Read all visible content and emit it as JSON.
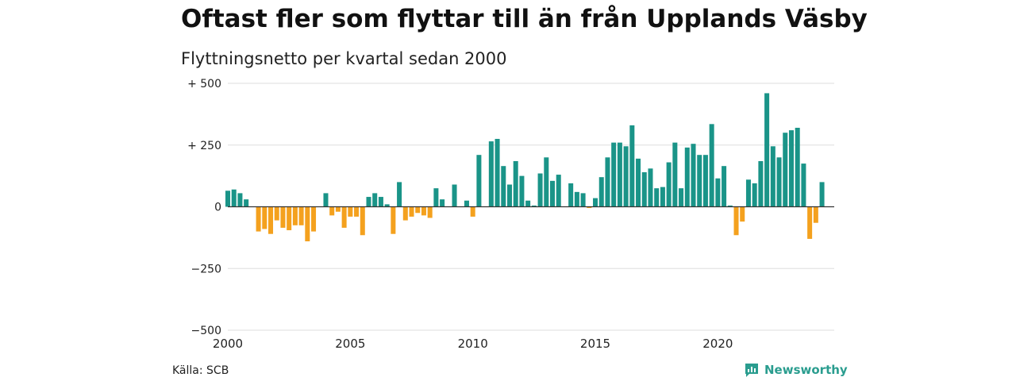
{
  "header": {
    "title": "Oftast fler som flyttar till än från Upplands Väsby",
    "subtitle": "Flyttningsnetto per kvartal sedan 2000"
  },
  "footer": {
    "source": "Källa: SCB",
    "brand": "Newsworthy",
    "brand_icon": "newsworthy-logo-icon"
  },
  "colors": {
    "positive": "#1a9488",
    "negative": "#f4a11e",
    "grid": "#dddddd",
    "zero_line": "#333333",
    "brand": "#2a9d8f"
  },
  "chart_data": {
    "type": "bar",
    "title": "Oftast fler som flyttar till än från Upplands Väsby",
    "subtitle": "Flyttningsnetto per kvartal sedan 2000",
    "xlabel": "",
    "ylabel": "",
    "x_start": 2000,
    "periods_per_year": 4,
    "xlim": [
      2000,
      2024.75
    ],
    "ylim": [
      -500,
      500
    ],
    "y_ticks": [
      500,
      250,
      0,
      -250,
      -500
    ],
    "y_tick_labels": [
      "+ 500",
      "+ 250",
      "0",
      "−250",
      "−500"
    ],
    "x_ticks": [
      2000,
      2005,
      2010,
      2015,
      2020
    ],
    "x_tick_labels": [
      "2000",
      "2005",
      "2010",
      "2015",
      "2020"
    ],
    "grid": true,
    "values": [
      65,
      70,
      55,
      30,
      0,
      -100,
      -90,
      -110,
      -55,
      -85,
      -95,
      -75,
      -75,
      -140,
      -100,
      0,
      55,
      -35,
      -20,
      -85,
      -40,
      -40,
      -115,
      40,
      55,
      40,
      10,
      -110,
      100,
      -55,
      -40,
      -25,
      -35,
      -45,
      75,
      30,
      0,
      90,
      0,
      25,
      -40,
      210,
      0,
      265,
      275,
      165,
      90,
      185,
      125,
      25,
      5,
      135,
      200,
      105,
      130,
      0,
      95,
      60,
      55,
      -5,
      35,
      120,
      200,
      260,
      260,
      245,
      330,
      195,
      140,
      155,
      75,
      80,
      180,
      260,
      75,
      240,
      255,
      210,
      210,
      335,
      115,
      165,
      5,
      -115,
      -60,
      110,
      95,
      185,
      460,
      245,
      200,
      300,
      310,
      320,
      175,
      -130,
      -65,
      100
    ]
  }
}
